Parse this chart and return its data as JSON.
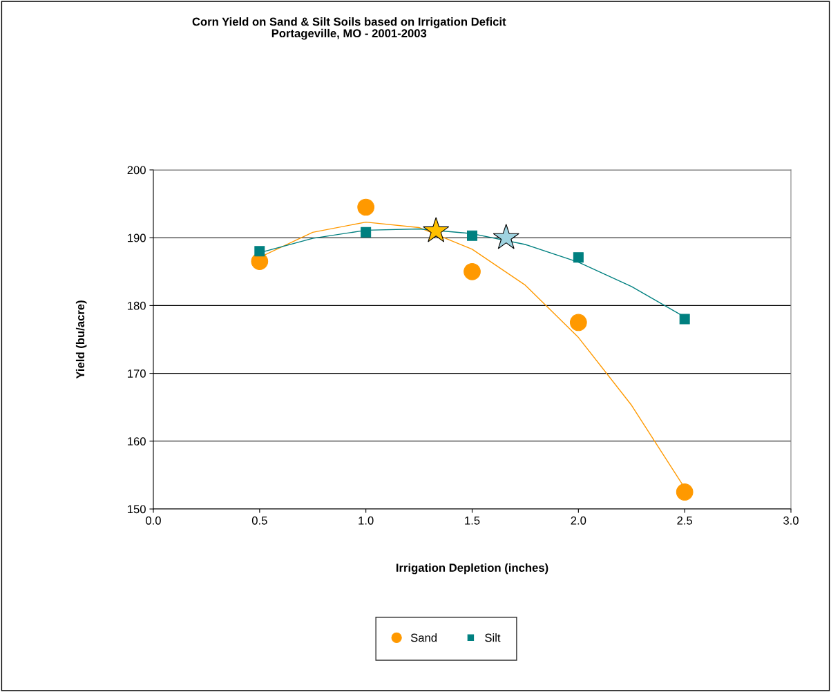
{
  "chart_data": {
    "type": "scatter",
    "title": "Corn Yield on Sand & Silt Soils based on Irrigation Deficit\nPortageville, MO - 2001-2003",
    "xlabel": "Irrigation Depletion (inches)",
    "ylabel": "Yield (bu/acre)",
    "xlim": [
      0.0,
      3.0
    ],
    "xticks": [
      {
        "value": 0,
        "label": "0.0"
      },
      0.5,
      {
        "value": 1,
        "label": "1.0"
      },
      1.5,
      {
        "value": 2,
        "label": "2.0"
      },
      2.5,
      {
        "value": 3,
        "label": "3.0"
      }
    ],
    "ylim": [
      150,
      200
    ],
    "yticks": [
      150,
      160,
      170,
      180,
      190,
      200
    ],
    "grid": "y",
    "legend": "bottom",
    "series": [
      {
        "name": "Sand",
        "marker": "circle",
        "color": "#ff9900",
        "x": [
          0.5,
          1.0,
          1.5,
          2.0,
          2.5
        ],
        "values": [
          186.5,
          194.5,
          185,
          177.5,
          152.5
        ]
      },
      {
        "name": "Silt",
        "marker": "square",
        "color": "#008080",
        "x": [
          0.5,
          1.0,
          1.5,
          2.0,
          2.5
        ],
        "values": [
          188,
          190.8,
          190.3,
          187.1,
          178
        ]
      },
      {
        "type": "line",
        "marker": "none",
        "color": "#ff9900",
        "x": [
          0.5,
          0.75,
          1.0,
          1.25,
          1.5,
          1.75,
          2.0,
          2.25,
          2.5
        ],
        "values": [
          187.1,
          190.8,
          192.3,
          191.5,
          188.3,
          183,
          175.3,
          165.3,
          153.1
        ]
      },
      {
        "type": "line",
        "marker": "none",
        "color": "#008080",
        "x": [
          0.5,
          0.75,
          1.0,
          1.25,
          1.5,
          1.75,
          2.0,
          2.25,
          2.5
        ],
        "values": [
          187.8,
          189.9,
          191.1,
          191.3,
          190.6,
          189,
          186.4,
          182.8,
          178.3
        ]
      },
      {
        "marker": "star",
        "color": "#ffc000",
        "x": [
          1.33
        ],
        "values": [
          191
        ]
      },
      {
        "marker": "star",
        "color": "#9fd3e0",
        "x": [
          1.66
        ],
        "values": [
          190
        ]
      }
    ]
  }
}
